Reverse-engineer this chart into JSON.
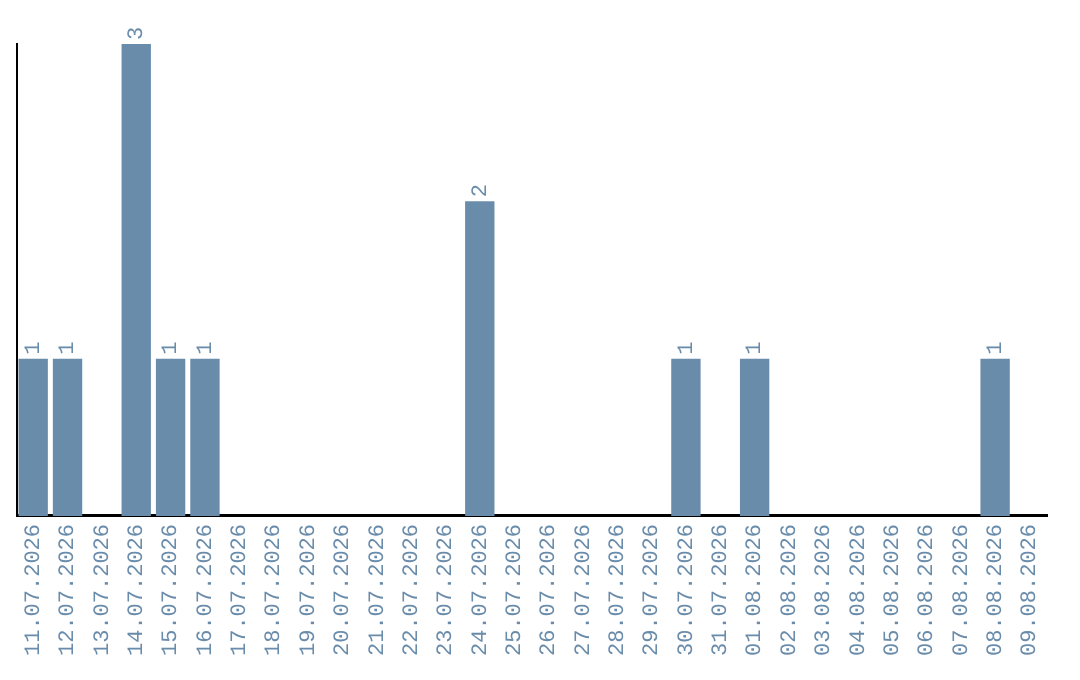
{
  "chart_data": {
    "type": "bar",
    "categories": [
      "11.07.2026",
      "12.07.2026",
      "13.07.2026",
      "14.07.2026",
      "15.07.2026",
      "16.07.2026",
      "17.07.2026",
      "18.07.2026",
      "19.07.2026",
      "20.07.2026",
      "21.07.2026",
      "22.07.2026",
      "23.07.2026",
      "24.07.2026",
      "25.07.2026",
      "26.07.2026",
      "27.07.2026",
      "28.07.2026",
      "29.07.2026",
      "30.07.2026",
      "31.07.2026",
      "01.08.2026",
      "02.08.2026",
      "03.08.2026",
      "04.08.2026",
      "05.08.2026",
      "06.08.2026",
      "07.08.2026",
      "08.08.2026",
      "09.08.2026"
    ],
    "values": [
      1,
      1,
      0,
      3,
      1,
      1,
      0,
      0,
      0,
      0,
      0,
      0,
      0,
      2,
      0,
      0,
      0,
      0,
      0,
      1,
      0,
      1,
      0,
      0,
      0,
      0,
      0,
      0,
      1,
      0
    ],
    "value_labels": [
      "1",
      "1",
      null,
      "3",
      "1",
      "1",
      null,
      null,
      null,
      null,
      null,
      null,
      null,
      "2",
      null,
      null,
      null,
      null,
      null,
      "1",
      null,
      "1",
      null,
      null,
      null,
      null,
      null,
      null,
      "1",
      null
    ],
    "color": "#6a8cab",
    "grid": false,
    "legend": false,
    "tick_labels": "x"
  }
}
